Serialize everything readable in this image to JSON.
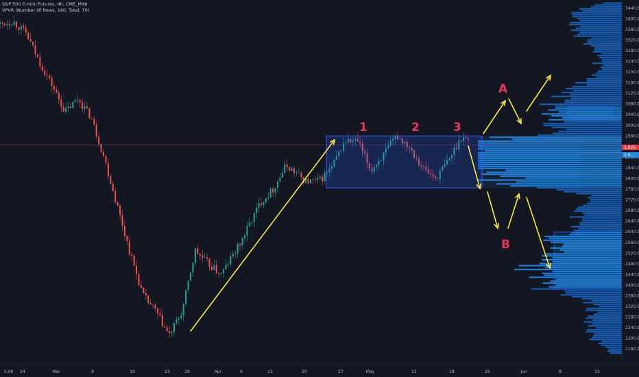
{
  "legend": {
    "symbol": "S&P 500 E-mini Futures, 4h, CME_MINI",
    "indicator": "VPVR (Number Of Rows, 180, Total, 70)"
  },
  "chart_data": {
    "type": "candlestick",
    "ylim": [
      2140,
      3460
    ],
    "y_ticks": [
      3440,
      3400,
      3360,
      3320,
      3280,
      3240,
      3200,
      3160,
      3120,
      3080,
      3040,
      3000,
      2960,
      2920,
      2880,
      2840,
      2800,
      2760,
      2720,
      2680,
      2640,
      2600,
      2560,
      2520,
      2480,
      2440,
      2400,
      2360,
      2320,
      2280,
      2240,
      2200,
      2160
    ],
    "x_ticks": [
      "5:00",
      "24",
      "Mar",
      "9",
      "16",
      "23",
      "26",
      "Apr",
      "6",
      "13",
      "20",
      "27",
      "May",
      "11",
      "18",
      "25",
      "Jun",
      "8",
      "15"
    ],
    "price_labels": [
      "2,926",
      "2,9.."
    ],
    "current_price": 2926,
    "price_path": [
      [
        0,
        3380
      ],
      [
        0.02,
        3390
      ],
      [
        0.04,
        3345
      ],
      [
        0.06,
        3240
      ],
      [
        0.08,
        3150
      ],
      [
        0.1,
        3050
      ],
      [
        0.12,
        3100
      ],
      [
        0.14,
        3030
      ],
      [
        0.16,
        2880
      ],
      [
        0.18,
        2700
      ],
      [
        0.2,
        2520
      ],
      [
        0.22,
        2360
      ],
      [
        0.24,
        2300
      ],
      [
        0.26,
        2210
      ],
      [
        0.28,
        2300
      ],
      [
        0.3,
        2530
      ],
      [
        0.32,
        2480
      ],
      [
        0.34,
        2440
      ],
      [
        0.37,
        2560
      ],
      [
        0.4,
        2710
      ],
      [
        0.42,
        2760
      ],
      [
        0.44,
        2850
      ],
      [
        0.47,
        2790
      ],
      [
        0.49,
        2790
      ],
      [
        0.51,
        2840
      ],
      [
        0.53,
        2940
      ],
      [
        0.55,
        2940
      ],
      [
        0.57,
        2830
      ],
      [
        0.59,
        2890
      ],
      [
        0.61,
        2960
      ],
      [
        0.63,
        2920
      ],
      [
        0.65,
        2840
      ],
      [
        0.67,
        2800
      ],
      [
        0.69,
        2870
      ],
      [
        0.71,
        2960
      ],
      [
        0.72,
        2940
      ]
    ],
    "consolidation_box": {
      "price_top": 2960,
      "price_bottom": 2765
    },
    "volume_profile_box_a": {
      "price_top": 3070,
      "price_bottom": 3020
    },
    "volume_profile_box_b": {
      "price_top": 2600,
      "price_bottom": 2385
    },
    "annotations": [
      {
        "text": "1"
      },
      {
        "text": "2"
      },
      {
        "text": "3"
      },
      {
        "text": "A"
      },
      {
        "text": "B"
      }
    ]
  }
}
